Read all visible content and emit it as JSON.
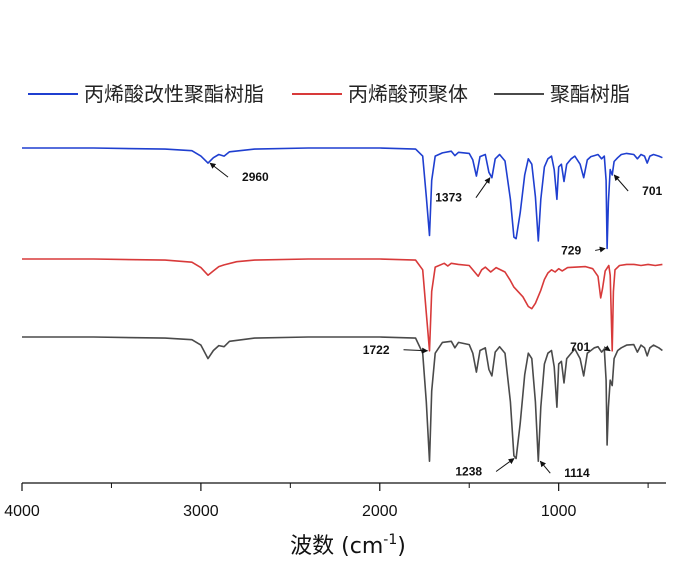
{
  "chart_data": {
    "type": "line",
    "title": "",
    "xlabel_main": "波数 (cm",
    "xlabel_sup": "-1",
    "xlabel_close": ")",
    "ylabel": "",
    "xlim": [
      4000,
      400
    ],
    "x_ticks": [
      4000,
      3000,
      2000,
      1000
    ],
    "x_tick_labels": [
      "4000",
      "3000",
      "2000",
      "1000"
    ],
    "y_axis_visible": false,
    "legend_position": "top",
    "series": [
      {
        "name": "丙烯酸改性聚酯树脂",
        "color": "#1f3fd0",
        "offset": 2,
        "points": [
          [
            4000,
            0.0
          ],
          [
            3600,
            0.0
          ],
          [
            3200,
            -0.02
          ],
          [
            3050,
            -0.05
          ],
          [
            3000,
            -0.15
          ],
          [
            2960,
            -0.28
          ],
          [
            2930,
            -0.18
          ],
          [
            2900,
            -0.12
          ],
          [
            2870,
            -0.15
          ],
          [
            2840,
            -0.07
          ],
          [
            2700,
            -0.02
          ],
          [
            2400,
            0.0
          ],
          [
            2000,
            0.0
          ],
          [
            1800,
            -0.02
          ],
          [
            1760,
            -0.15
          ],
          [
            1740,
            -0.9
          ],
          [
            1722,
            -1.62
          ],
          [
            1710,
            -0.6
          ],
          [
            1690,
            -0.15
          ],
          [
            1650,
            -0.09
          ],
          [
            1600,
            -0.06
          ],
          [
            1580,
            -0.14
          ],
          [
            1560,
            -0.08
          ],
          [
            1500,
            -0.1
          ],
          [
            1480,
            -0.22
          ],
          [
            1460,
            -0.52
          ],
          [
            1440,
            -0.16
          ],
          [
            1410,
            -0.12
          ],
          [
            1390,
            -0.45
          ],
          [
            1373,
            -0.55
          ],
          [
            1355,
            -0.2
          ],
          [
            1330,
            -0.12
          ],
          [
            1300,
            -0.24
          ],
          [
            1270,
            -0.95
          ],
          [
            1250,
            -1.65
          ],
          [
            1238,
            -1.68
          ],
          [
            1215,
            -1.2
          ],
          [
            1190,
            -0.5
          ],
          [
            1170,
            -0.2
          ],
          [
            1150,
            -0.3
          ],
          [
            1130,
            -0.9
          ],
          [
            1114,
            -1.72
          ],
          [
            1100,
            -0.95
          ],
          [
            1080,
            -0.35
          ],
          [
            1060,
            -0.2
          ],
          [
            1040,
            -0.15
          ],
          [
            1025,
            -0.4
          ],
          [
            1010,
            -0.95
          ],
          [
            1000,
            -0.35
          ],
          [
            985,
            -0.3
          ],
          [
            970,
            -0.62
          ],
          [
            955,
            -0.3
          ],
          [
            930,
            -0.2
          ],
          [
            910,
            -0.15
          ],
          [
            880,
            -0.3
          ],
          [
            860,
            -0.55
          ],
          [
            840,
            -0.22
          ],
          [
            820,
            -0.16
          ],
          [
            800,
            -0.14
          ],
          [
            780,
            -0.12
          ],
          [
            760,
            -0.2
          ],
          [
            745,
            -0.15
          ],
          [
            735,
            -0.6
          ],
          [
            729,
            -1.86
          ],
          [
            722,
            -1.0
          ],
          [
            712,
            -0.4
          ],
          [
            701,
            -0.5
          ],
          [
            690,
            -0.25
          ],
          [
            670,
            -0.18
          ],
          [
            650,
            -0.12
          ],
          [
            620,
            -0.1
          ],
          [
            580,
            -0.12
          ],
          [
            560,
            -0.2
          ],
          [
            540,
            -0.12
          ],
          [
            520,
            -0.15
          ],
          [
            505,
            -0.28
          ],
          [
            490,
            -0.15
          ],
          [
            470,
            -0.12
          ],
          [
            440,
            -0.15
          ],
          [
            420,
            -0.18
          ]
        ]
      },
      {
        "name": "丙烯酸预聚体",
        "color": "#d83a3a",
        "offset": 0,
        "points": [
          [
            4000,
            0.0
          ],
          [
            3600,
            0.0
          ],
          [
            3200,
            -0.02
          ],
          [
            3050,
            -0.06
          ],
          [
            3000,
            -0.16
          ],
          [
            2960,
            -0.3
          ],
          [
            2930,
            -0.22
          ],
          [
            2900,
            -0.14
          ],
          [
            2870,
            -0.11
          ],
          [
            2800,
            -0.05
          ],
          [
            2700,
            -0.02
          ],
          [
            2400,
            0.0
          ],
          [
            2000,
            0.0
          ],
          [
            1800,
            -0.02
          ],
          [
            1760,
            -0.2
          ],
          [
            1740,
            -1.0
          ],
          [
            1722,
            -1.7
          ],
          [
            1710,
            -0.6
          ],
          [
            1690,
            -0.15
          ],
          [
            1640,
            -0.08
          ],
          [
            1620,
            -0.13
          ],
          [
            1600,
            -0.08
          ],
          [
            1560,
            -0.1
          ],
          [
            1500,
            -0.12
          ],
          [
            1450,
            -0.32
          ],
          [
            1430,
            -0.2
          ],
          [
            1410,
            -0.15
          ],
          [
            1380,
            -0.24
          ],
          [
            1350,
            -0.16
          ],
          [
            1300,
            -0.24
          ],
          [
            1270,
            -0.4
          ],
          [
            1250,
            -0.52
          ],
          [
            1200,
            -0.7
          ],
          [
            1170,
            -0.88
          ],
          [
            1150,
            -0.92
          ],
          [
            1130,
            -0.82
          ],
          [
            1100,
            -0.58
          ],
          [
            1080,
            -0.38
          ],
          [
            1060,
            -0.26
          ],
          [
            1040,
            -0.2
          ],
          [
            1020,
            -0.24
          ],
          [
            1000,
            -0.18
          ],
          [
            980,
            -0.22
          ],
          [
            950,
            -0.16
          ],
          [
            900,
            -0.15
          ],
          [
            850,
            -0.14
          ],
          [
            810,
            -0.18
          ],
          [
            780,
            -0.32
          ],
          [
            765,
            -0.72
          ],
          [
            755,
            -0.55
          ],
          [
            740,
            -0.22
          ],
          [
            720,
            -0.12
          ],
          [
            712,
            -0.3
          ],
          [
            701,
            -1.7
          ],
          [
            694,
            -0.6
          ],
          [
            685,
            -0.2
          ],
          [
            660,
            -0.12
          ],
          [
            620,
            -0.1
          ],
          [
            580,
            -0.1
          ],
          [
            540,
            -0.12
          ],
          [
            500,
            -0.1
          ],
          [
            460,
            -0.12
          ],
          [
            420,
            -0.1
          ]
        ]
      },
      {
        "name": "聚酯树脂",
        "color": "#4a4a4a",
        "offset": -2,
        "points": [
          [
            4000,
            0.0
          ],
          [
            3600,
            0.0
          ],
          [
            3200,
            -0.02
          ],
          [
            3050,
            -0.05
          ],
          [
            3000,
            -0.15
          ],
          [
            2960,
            -0.4
          ],
          [
            2930,
            -0.25
          ],
          [
            2900,
            -0.16
          ],
          [
            2870,
            -0.18
          ],
          [
            2840,
            -0.08
          ],
          [
            2700,
            -0.02
          ],
          [
            2400,
            0.0
          ],
          [
            2000,
            0.0
          ],
          [
            1800,
            -0.02
          ],
          [
            1760,
            -0.3
          ],
          [
            1740,
            -1.2
          ],
          [
            1722,
            -2.3
          ],
          [
            1710,
            -1.0
          ],
          [
            1690,
            -0.3
          ],
          [
            1650,
            -0.1
          ],
          [
            1600,
            -0.08
          ],
          [
            1580,
            -0.2
          ],
          [
            1560,
            -0.1
          ],
          [
            1500,
            -0.14
          ],
          [
            1480,
            -0.3
          ],
          [
            1460,
            -0.65
          ],
          [
            1440,
            -0.25
          ],
          [
            1410,
            -0.2
          ],
          [
            1390,
            -0.6
          ],
          [
            1373,
            -0.72
          ],
          [
            1355,
            -0.28
          ],
          [
            1330,
            -0.18
          ],
          [
            1300,
            -0.3
          ],
          [
            1270,
            -1.2
          ],
          [
            1250,
            -2.2
          ],
          [
            1238,
            -2.25
          ],
          [
            1215,
            -1.6
          ],
          [
            1190,
            -0.7
          ],
          [
            1170,
            -0.3
          ],
          [
            1150,
            -0.4
          ],
          [
            1130,
            -1.2
          ],
          [
            1114,
            -2.3
          ],
          [
            1100,
            -1.3
          ],
          [
            1080,
            -0.5
          ],
          [
            1060,
            -0.3
          ],
          [
            1040,
            -0.25
          ],
          [
            1025,
            -0.55
          ],
          [
            1010,
            -1.3
          ],
          [
            1000,
            -0.5
          ],
          [
            985,
            -0.45
          ],
          [
            970,
            -0.85
          ],
          [
            955,
            -0.4
          ],
          [
            930,
            -0.3
          ],
          [
            910,
            -0.22
          ],
          [
            880,
            -0.4
          ],
          [
            860,
            -0.72
          ],
          [
            840,
            -0.3
          ],
          [
            820,
            -0.25
          ],
          [
            800,
            -0.2
          ],
          [
            780,
            -0.18
          ],
          [
            760,
            -0.28
          ],
          [
            745,
            -0.22
          ],
          [
            735,
            -0.8
          ],
          [
            729,
            -2.0
          ],
          [
            722,
            -1.3
          ],
          [
            712,
            -0.8
          ],
          [
            701,
            -0.9
          ],
          [
            690,
            -0.4
          ],
          [
            670,
            -0.25
          ],
          [
            650,
            -0.2
          ],
          [
            620,
            -0.15
          ],
          [
            580,
            -0.14
          ],
          [
            560,
            -0.28
          ],
          [
            540,
            -0.15
          ],
          [
            520,
            -0.2
          ],
          [
            505,
            -0.35
          ],
          [
            490,
            -0.2
          ],
          [
            470,
            -0.15
          ],
          [
            440,
            -0.2
          ],
          [
            420,
            -0.25
          ]
        ]
      }
    ],
    "annotations": [
      {
        "label": "2960",
        "series": 0,
        "x": 2960,
        "y": -0.28
      },
      {
        "label": "1373",
        "series": 0,
        "x": 1373,
        "y": -0.55
      },
      {
        "label": "729",
        "series": 0,
        "x": 729,
        "y": -1.86
      },
      {
        "label": "701",
        "series": 0,
        "x": 701,
        "y": -0.5
      },
      {
        "label": "1722",
        "series": 1,
        "x": 1722,
        "y": -1.7
      },
      {
        "label": "701",
        "series": 1,
        "x": 701,
        "y": -1.7
      },
      {
        "label": "1238",
        "series": 2,
        "x": 1238,
        "y": -2.25
      },
      {
        "label": "1114",
        "series": 2,
        "x": 1114,
        "y": -2.3
      }
    ]
  }
}
